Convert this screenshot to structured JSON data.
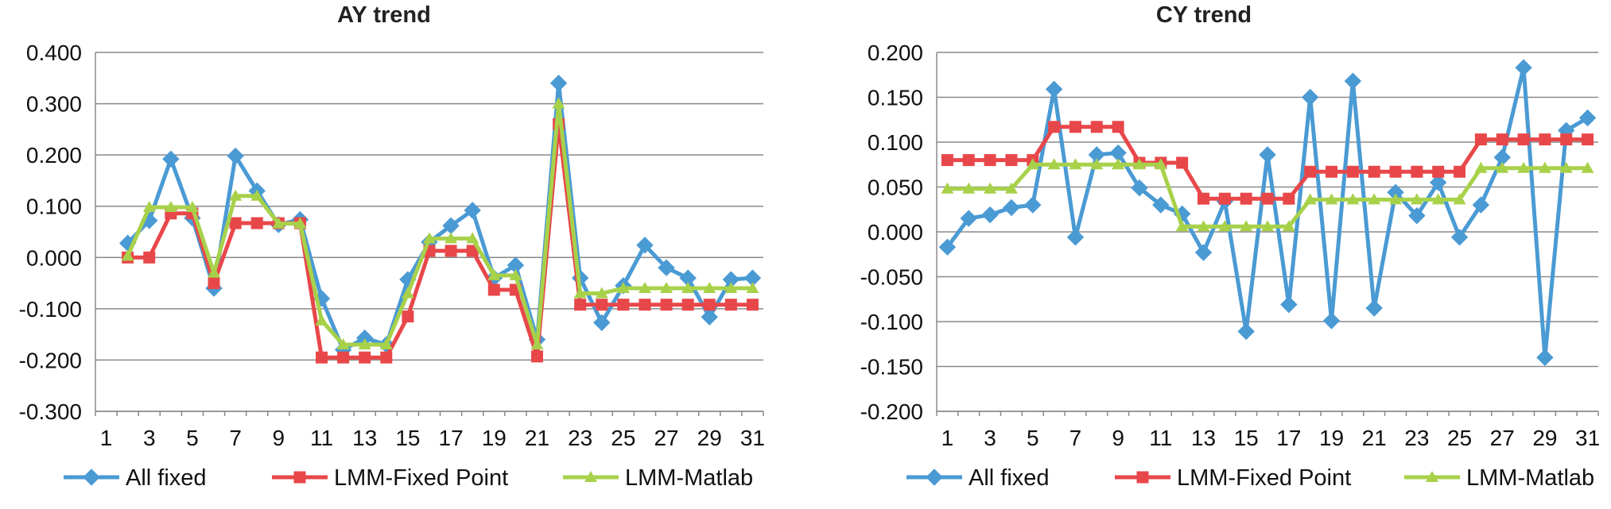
{
  "chart_data": [
    {
      "type": "line",
      "title": "AY trend",
      "xlabel": "",
      "ylabel": "",
      "x": [
        1,
        2,
        3,
        4,
        5,
        6,
        7,
        8,
        9,
        10,
        11,
        12,
        13,
        14,
        15,
        16,
        17,
        18,
        19,
        20,
        21,
        22,
        23,
        24,
        25,
        26,
        27,
        28,
        29,
        30,
        31
      ],
      "xticks": [
        "1",
        "3",
        "5",
        "7",
        "9",
        "11",
        "13",
        "15",
        "17",
        "19",
        "21",
        "23",
        "25",
        "27",
        "29",
        "31"
      ],
      "ylim": [
        -0.3,
        0.4
      ],
      "yticks": [
        "0.400",
        "0.300",
        "0.200",
        "0.100",
        "0.000",
        "-0.100",
        "-0.200",
        "-0.300"
      ],
      "grid": true,
      "legend": "bottom",
      "series": [
        {
          "name": "All fixed",
          "color": "#4a9ad4",
          "marker": "diamond",
          "values": [
            null,
            0.028,
            0.072,
            0.192,
            0.077,
            -0.06,
            0.198,
            0.13,
            0.064,
            0.074,
            -0.08,
            -0.18,
            -0.157,
            -0.17,
            -0.043,
            0.03,
            0.062,
            0.092,
            -0.04,
            -0.015,
            -0.16,
            0.34,
            -0.04,
            -0.127,
            -0.055,
            0.024,
            -0.02,
            -0.04,
            -0.116,
            -0.043,
            -0.04
          ]
        },
        {
          "name": "LMM-Fixed Point",
          "color": "#e8474a",
          "marker": "square",
          "values": [
            null,
            0.0,
            0.0,
            0.086,
            0.086,
            -0.05,
            0.067,
            0.067,
            0.067,
            0.067,
            -0.195,
            -0.195,
            -0.195,
            -0.195,
            -0.115,
            0.013,
            0.013,
            0.013,
            -0.063,
            -0.063,
            -0.193,
            0.26,
            -0.092,
            -0.092,
            -0.092,
            -0.092,
            -0.092,
            -0.092,
            -0.092,
            -0.092,
            -0.092
          ]
        },
        {
          "name": "LMM-Matlab",
          "color": "#a8d14a",
          "marker": "triangle",
          "values": [
            null,
            0.003,
            0.098,
            0.098,
            0.098,
            -0.03,
            0.12,
            0.12,
            0.066,
            0.066,
            -0.123,
            -0.17,
            -0.17,
            -0.17,
            -0.07,
            0.037,
            0.037,
            0.037,
            -0.035,
            -0.035,
            -0.17,
            0.3,
            -0.07,
            -0.07,
            -0.06,
            -0.06,
            -0.06,
            -0.06,
            -0.06,
            -0.06,
            -0.06
          ]
        }
      ]
    },
    {
      "type": "line",
      "title": "CY trend",
      "xlabel": "",
      "ylabel": "",
      "x": [
        1,
        2,
        3,
        4,
        5,
        6,
        7,
        8,
        9,
        10,
        11,
        12,
        13,
        14,
        15,
        16,
        17,
        18,
        19,
        20,
        21,
        22,
        23,
        24,
        25,
        26,
        27,
        28,
        29,
        30,
        31
      ],
      "xticks": [
        "1",
        "3",
        "5",
        "7",
        "9",
        "11",
        "13",
        "15",
        "17",
        "19",
        "21",
        "23",
        "25",
        "27",
        "29",
        "31"
      ],
      "ylim": [
        -0.2,
        0.2
      ],
      "yticks": [
        "0.200",
        "0.150",
        "0.100",
        "0.050",
        "0.000",
        "-0.050",
        "-0.100",
        "-0.150",
        "-0.200"
      ],
      "grid": true,
      "legend": "bottom",
      "series": [
        {
          "name": "All fixed",
          "color": "#4a9ad4",
          "marker": "diamond",
          "values": [
            -0.017,
            0.015,
            0.019,
            0.027,
            0.03,
            0.159,
            -0.006,
            0.086,
            0.088,
            0.049,
            0.03,
            0.02,
            -0.023,
            0.034,
            -0.111,
            0.086,
            -0.081,
            0.15,
            -0.099,
            0.168,
            -0.085,
            0.044,
            0.018,
            0.055,
            -0.006,
            0.03,
            0.083,
            0.183,
            -0.14,
            0.113,
            0.127
          ]
        },
        {
          "name": "LMM-Fixed Point",
          "color": "#e8474a",
          "marker": "square",
          "values": [
            0.08,
            0.08,
            0.08,
            0.08,
            0.08,
            0.117,
            0.117,
            0.117,
            0.117,
            0.077,
            0.077,
            0.077,
            0.037,
            0.037,
            0.037,
            0.037,
            0.037,
            0.067,
            0.067,
            0.067,
            0.067,
            0.067,
            0.067,
            0.067,
            0.067,
            0.103,
            0.103,
            0.103,
            0.103,
            0.103,
            0.103
          ]
        },
        {
          "name": "LMM-Matlab",
          "color": "#a8d14a",
          "marker": "triangle",
          "values": [
            0.048,
            0.048,
            0.048,
            0.048,
            0.075,
            0.075,
            0.075,
            0.075,
            0.075,
            0.075,
            0.075,
            0.006,
            0.006,
            0.006,
            0.006,
            0.006,
            0.006,
            0.036,
            0.036,
            0.036,
            0.036,
            0.036,
            0.036,
            0.036,
            0.036,
            0.071,
            0.071,
            0.071,
            0.071,
            0.071,
            0.071
          ]
        }
      ]
    }
  ]
}
